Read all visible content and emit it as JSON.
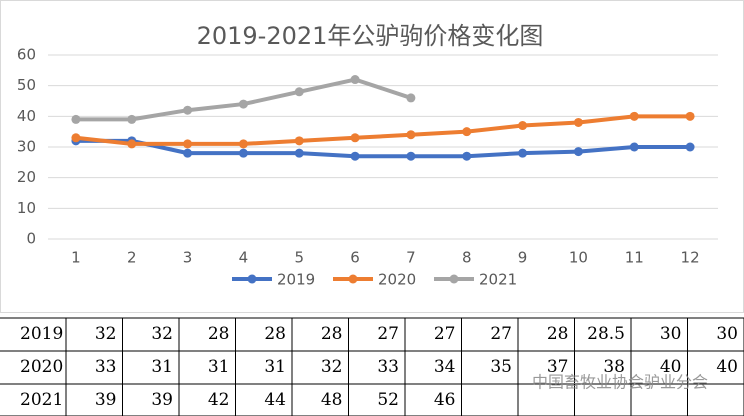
{
  "chart_data": {
    "type": "line",
    "title": "2019-2021年公驴驹价格变化图",
    "categories": [
      "1",
      "2",
      "3",
      "4",
      "5",
      "6",
      "7",
      "8",
      "9",
      "10",
      "11",
      "12"
    ],
    "series": [
      {
        "name": "2019",
        "color": "#4472c4",
        "values": [
          32,
          32,
          28,
          28,
          28,
          27,
          27,
          27,
          28,
          28.5,
          30,
          30
        ]
      },
      {
        "name": "2020",
        "color": "#ed7d31",
        "values": [
          33,
          31,
          31,
          31,
          32,
          33,
          34,
          35,
          37,
          38,
          40,
          40
        ]
      },
      {
        "name": "2021",
        "color": "#a5a5a5",
        "values": [
          39,
          39,
          42,
          44,
          48,
          52,
          46,
          null,
          null,
          null,
          null,
          null
        ]
      }
    ],
    "ylim": [
      0,
      60
    ],
    "yticks": [
      0,
      10,
      20,
      30,
      40,
      50,
      60
    ],
    "grid": true,
    "legend": "bottom"
  },
  "watermark": "中国畜牧业协会驴业分会"
}
